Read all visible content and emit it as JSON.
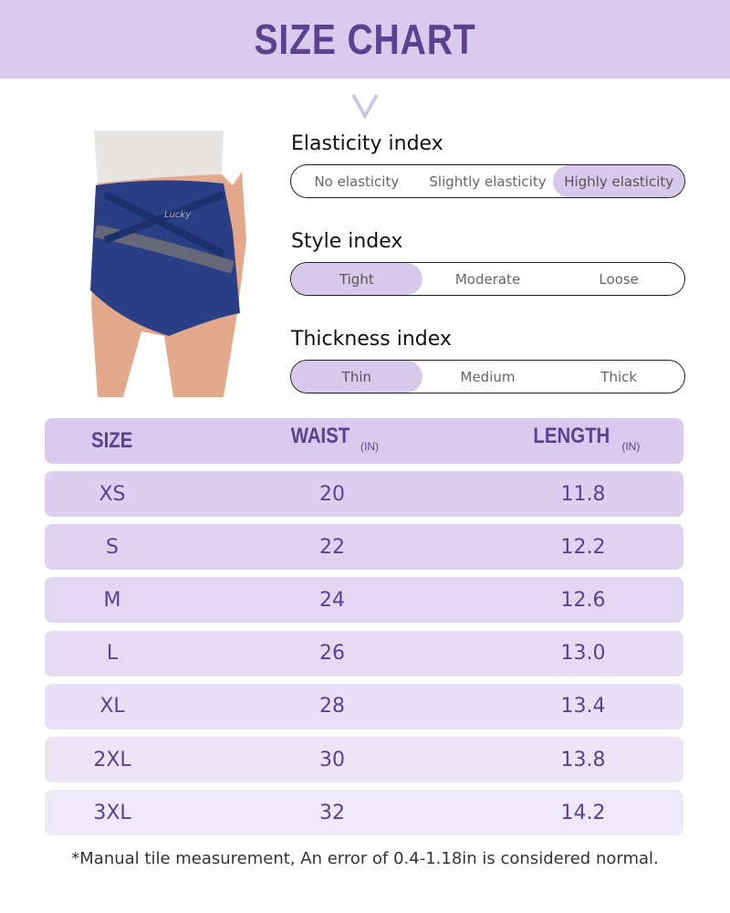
{
  "title": "SIZE CHART",
  "indices": [
    {
      "label": "Elasticity index",
      "options": [
        "No elasticity",
        "Slightly elasticity",
        "Highly elasticity"
      ],
      "selected": 2
    },
    {
      "label": "Style index",
      "options": [
        "Tight",
        "Moderate",
        "Loose"
      ],
      "selected": 0
    },
    {
      "label": "Thickness index",
      "options": [
        "Thin",
        "Medium",
        "Thick"
      ],
      "selected": 0
    }
  ],
  "table": {
    "headers": {
      "size": "SIZE",
      "waist": "WAIST",
      "length": "LENGTH",
      "unit": "(IN)"
    },
    "rows": [
      {
        "size": "XS",
        "waist": "20",
        "length": "11.8"
      },
      {
        "size": "S",
        "waist": "22",
        "length": "12.2"
      },
      {
        "size": "M",
        "waist": "24",
        "length": "12.6"
      },
      {
        "size": "L",
        "waist": "26",
        "length": "13.0"
      },
      {
        "size": "XL",
        "waist": "28",
        "length": "13.4"
      },
      {
        "size": "2XL",
        "waist": "30",
        "length": "13.8"
      },
      {
        "size": "3XL",
        "waist": "32",
        "length": "14.2"
      }
    ]
  },
  "note": "*Manual tile measurement, An error of 0.4-1.18in is considered normal.",
  "colors": {
    "accent": "#5b4190",
    "banner": "#d9cbee",
    "selected": "#d7c9ec"
  },
  "product_logo": "Lucky"
}
